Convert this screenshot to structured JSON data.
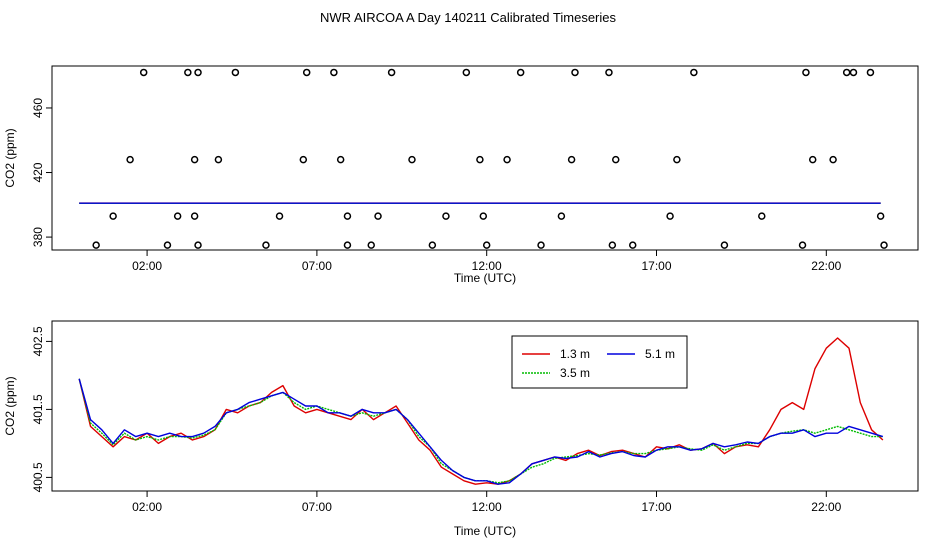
{
  "figure": {
    "title": "NWR AIRCOA A  Day 140211  Calibrated Timeseries"
  },
  "colors": {
    "s13": "#dd0000",
    "s35": "#00bb00",
    "s51": "#0000dd",
    "axis": "#000000"
  },
  "chart_data": [
    {
      "type": "scatter",
      "title": "",
      "xlabel": "Time (UTC)",
      "ylabel": "CO2 (ppm)",
      "xlim": [
        -0.8,
        24.7
      ],
      "ylim": [
        372,
        486
      ],
      "xticks": [
        2,
        7,
        12,
        17,
        22
      ],
      "xtick_labels": [
        "02:00",
        "07:00",
        "12:00",
        "17:00",
        "22:00"
      ],
      "yticks": [
        380,
        420,
        460
      ],
      "ytick_labels": [
        "380",
        "420",
        "460"
      ],
      "flat_lines": [
        {
          "name": "1.3 m",
          "color": "#dd0000",
          "x": [
            0.0,
            23.6
          ],
          "y": [
            401.1,
            401.1
          ]
        },
        {
          "name": "3.5 m",
          "color": "#00bb00",
          "x": [
            0.0,
            23.6
          ],
          "y": [
            401.0,
            401.0
          ]
        },
        {
          "name": "5.1 m",
          "color": "#0000dd",
          "x": [
            0.0,
            23.6
          ],
          "y": [
            401.0,
            401.0
          ]
        }
      ],
      "points": {
        "x": [
          0.5,
          1.0,
          1.5,
          1.9,
          2.6,
          2.9,
          3.2,
          3.4,
          3.4,
          3.5,
          3.5,
          4.1,
          4.6,
          5.5,
          5.9,
          6.6,
          6.7,
          7.5,
          7.7,
          7.9,
          7.9,
          8.6,
          8.8,
          9.2,
          9.8,
          10.4,
          10.8,
          11.4,
          11.8,
          11.9,
          12.0,
          12.6,
          13.0,
          13.6,
          14.2,
          14.5,
          14.6,
          15.6,
          15.7,
          15.8,
          16.3,
          17.4,
          17.6,
          18.1,
          19.0,
          20.1,
          21.3,
          21.6,
          21.4,
          22.2,
          22.6,
          22.8,
          23.3,
          23.6,
          23.7
        ],
        "y": [
          375,
          393,
          428,
          482,
          375,
          393,
          482,
          428,
          393,
          375,
          482,
          428,
          482,
          375,
          393,
          428,
          482,
          482,
          428,
          393,
          375,
          375,
          393,
          482,
          428,
          375,
          393,
          482,
          428,
          393,
          375,
          428,
          482,
          375,
          393,
          428,
          482,
          482,
          375,
          428,
          375,
          393,
          428,
          482,
          375,
          393,
          375,
          428,
          482,
          428,
          482,
          482,
          482,
          393,
          375
        ]
      }
    },
    {
      "type": "line",
      "title": "",
      "xlabel": "Time (UTC)",
      "ylabel": "CO2 (ppm)",
      "xlim": [
        -0.8,
        24.7
      ],
      "ylim": [
        400.3,
        402.8
      ],
      "xticks": [
        2,
        7,
        12,
        17,
        22
      ],
      "xtick_labels": [
        "02:00",
        "07:00",
        "12:00",
        "17:00",
        "22:00"
      ],
      "yticks": [
        400.5,
        401.5,
        402.5
      ],
      "ytick_labels": [
        "400.5",
        "401.5",
        "402.5"
      ],
      "legend": {
        "position": "top-right",
        "labels": [
          "1.3 m",
          "3.5 m",
          "5.1 m"
        ]
      },
      "x": [
        0.0,
        0.333,
        0.667,
        1.0,
        1.333,
        1.667,
        2.0,
        2.333,
        2.667,
        3.0,
        3.333,
        3.667,
        4.0,
        4.333,
        4.667,
        5.0,
        5.333,
        5.667,
        6.0,
        6.333,
        6.667,
        7.0,
        7.333,
        7.667,
        8.0,
        8.333,
        8.667,
        9.0,
        9.333,
        9.667,
        10.0,
        10.333,
        10.667,
        11.0,
        11.333,
        11.667,
        12.0,
        12.333,
        12.667,
        13.0,
        13.333,
        13.667,
        14.0,
        14.333,
        14.667,
        15.0,
        15.333,
        15.667,
        16.0,
        16.333,
        16.667,
        17.0,
        17.333,
        17.667,
        18.0,
        18.333,
        18.667,
        19.0,
        19.333,
        19.667,
        20.0,
        20.333,
        20.667,
        21.0,
        21.333,
        21.667,
        22.0,
        22.333,
        22.667,
        23.0,
        23.333,
        23.667
      ],
      "series": [
        {
          "name": "1.3 m",
          "color": "#dd0000",
          "values": [
            401.95,
            401.25,
            401.1,
            400.95,
            401.1,
            401.05,
            401.15,
            401.0,
            401.1,
            401.15,
            401.05,
            401.1,
            401.2,
            401.5,
            401.45,
            401.55,
            401.6,
            401.75,
            401.85,
            401.55,
            401.45,
            401.5,
            401.45,
            401.4,
            401.35,
            401.5,
            401.35,
            401.45,
            401.55,
            401.3,
            401.05,
            400.9,
            400.65,
            400.55,
            400.45,
            400.4,
            400.42,
            400.4,
            400.45,
            400.55,
            400.7,
            400.75,
            400.8,
            400.75,
            400.85,
            400.9,
            400.82,
            400.88,
            400.9,
            400.85,
            400.8,
            400.95,
            400.92,
            400.98,
            400.9,
            400.92,
            401.0,
            400.85,
            400.95,
            400.98,
            400.95,
            401.2,
            401.5,
            401.6,
            401.5,
            402.1,
            402.4,
            402.55,
            402.4,
            401.6,
            401.2,
            401.05
          ]
        },
        {
          "name": "3.5 m",
          "color": "#00bb00",
          "values": [
            401.95,
            401.3,
            401.15,
            400.98,
            401.15,
            401.05,
            401.1,
            401.05,
            401.1,
            401.1,
            401.08,
            401.12,
            401.2,
            401.45,
            401.5,
            401.55,
            401.6,
            401.7,
            401.75,
            401.6,
            401.5,
            401.55,
            401.5,
            401.45,
            401.4,
            401.45,
            401.4,
            401.45,
            401.5,
            401.35,
            401.1,
            400.95,
            400.7,
            400.6,
            400.5,
            400.45,
            400.45,
            400.42,
            400.45,
            400.55,
            400.65,
            400.7,
            400.78,
            400.8,
            400.82,
            400.85,
            400.83,
            400.86,
            400.88,
            400.85,
            400.85,
            400.9,
            400.92,
            400.95,
            400.92,
            400.9,
            400.98,
            400.9,
            400.95,
            401.0,
            401.0,
            401.1,
            401.15,
            401.18,
            401.2,
            401.15,
            401.2,
            401.25,
            401.2,
            401.15,
            401.1,
            401.1
          ]
        },
        {
          "name": "5.1 m",
          "color": "#0000dd",
          "values": [
            401.95,
            401.35,
            401.2,
            401.0,
            401.2,
            401.1,
            401.15,
            401.1,
            401.15,
            401.1,
            401.1,
            401.15,
            401.25,
            401.45,
            401.5,
            401.6,
            401.65,
            401.7,
            401.75,
            401.65,
            401.55,
            401.55,
            401.45,
            401.45,
            401.4,
            401.5,
            401.45,
            401.45,
            401.5,
            401.35,
            401.15,
            400.95,
            400.75,
            400.6,
            400.5,
            400.45,
            400.45,
            400.4,
            400.42,
            400.55,
            400.7,
            400.75,
            400.8,
            400.78,
            400.8,
            400.88,
            400.8,
            400.85,
            400.88,
            400.82,
            400.8,
            400.9,
            400.95,
            400.95,
            400.9,
            400.92,
            401.0,
            400.95,
            400.98,
            401.02,
            401.0,
            401.1,
            401.15,
            401.15,
            401.2,
            401.1,
            401.15,
            401.15,
            401.25,
            401.2,
            401.15,
            401.1
          ]
        }
      ]
    }
  ]
}
